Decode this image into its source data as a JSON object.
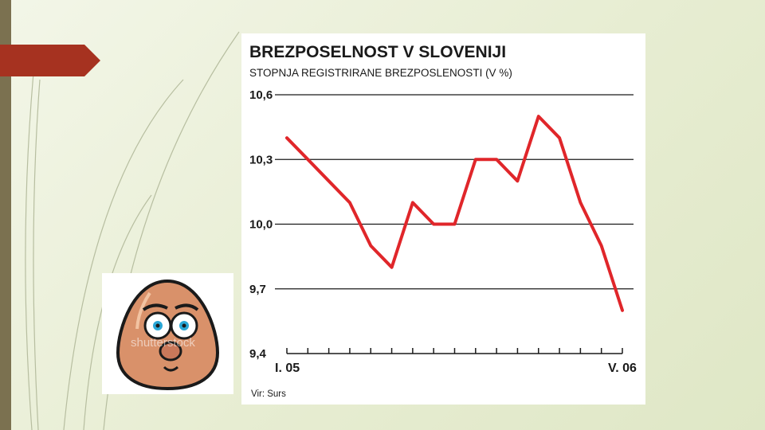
{
  "slide": {
    "accent_color": "#a63220",
    "left_bar_color": "#7b7150",
    "egg_watermark": "shutterstock"
  },
  "icons": {
    "arrow_tab": "red-arrow-tab-icon",
    "egg_face": "surprised-egg-face-icon"
  },
  "chart_data": {
    "type": "line",
    "title": "BREZPOSELNOST V SLOVENIJI",
    "subtitle": "STOPNJA REGISTRIRANE BREZPOSLENOSTI (V %)",
    "source": "Vir: Surs",
    "x_start_label": "I. 05",
    "x_end_label": "V. 06",
    "y_tick_labels": [
      "10,6",
      "10,3",
      "10,0",
      "9,7",
      "9,4"
    ],
    "y_ticks": [
      10.6,
      10.3,
      10.0,
      9.7,
      9.4
    ],
    "ylim": [
      9.4,
      10.6
    ],
    "x_tick_count": 17,
    "grid": true,
    "line_color": "#e0262a",
    "series": [
      {
        "values": [
          10.4,
          10.3,
          10.2,
          10.1,
          9.9,
          9.8,
          10.1,
          10.0,
          10.0,
          10.3,
          10.3,
          10.2,
          10.5,
          10.4,
          10.1,
          9.9,
          9.6
        ]
      }
    ]
  }
}
